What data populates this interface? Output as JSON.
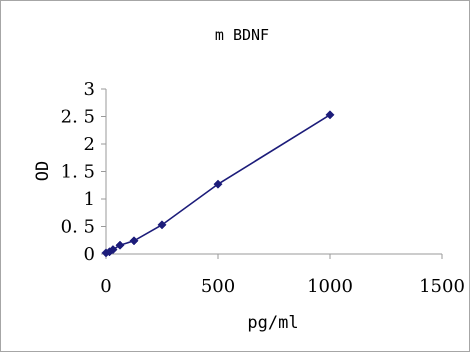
{
  "chart_data": {
    "type": "line",
    "title": "m BDNF",
    "xlabel": "pg/ml",
    "ylabel": "OD",
    "xlim": [
      0,
      1500
    ],
    "ylim": [
      0,
      3
    ],
    "xticks": [
      0,
      500,
      1000,
      1500
    ],
    "yticks": [
      0,
      0.5,
      1,
      1.5,
      2,
      2.5,
      3
    ],
    "xtick_labels": [
      "0",
      "500",
      "1000",
      "1500"
    ],
    "ytick_labels": [
      "0",
      "0. 5",
      "1",
      "1. 5",
      "2",
      "2. 5",
      "3"
    ],
    "grid": false,
    "legend": "none",
    "series": [
      {
        "marker": "diamond",
        "color": "#1c1c7a",
        "x": [
          0,
          15.6,
          31.25,
          62.5,
          125,
          250,
          500,
          1000
        ],
        "y": [
          0.02,
          0.04,
          0.08,
          0.16,
          0.24,
          0.53,
          1.27,
          2.53
        ]
      }
    ]
  }
}
